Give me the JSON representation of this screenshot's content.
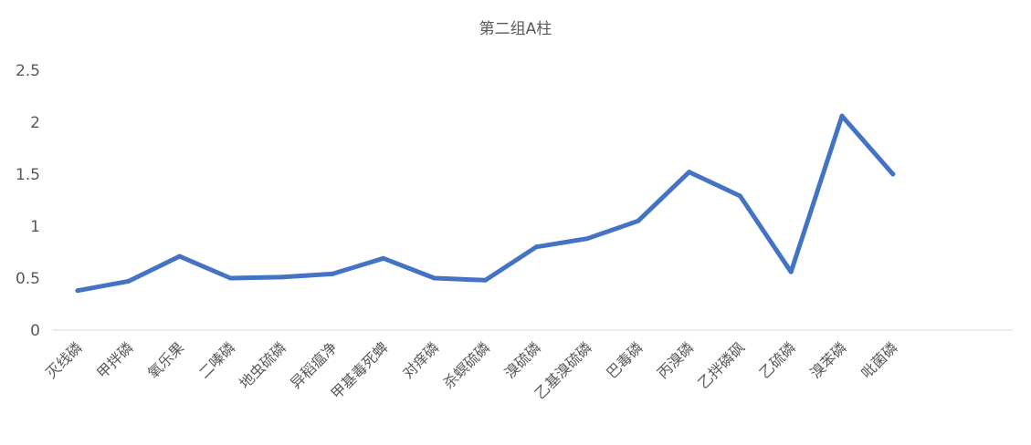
{
  "chart_data": {
    "type": "line",
    "title": "第二组A柱",
    "xlabel": "",
    "ylabel": "",
    "ylim": [
      0,
      2.5
    ],
    "yticks": [
      "0",
      "0.5",
      "1",
      "1.5",
      "2",
      "2.5"
    ],
    "grid": false,
    "legend": "none",
    "categories": [
      "灭线磷",
      "甲拌磷",
      "氧乐果",
      "二嗪磷",
      "地虫硫磷",
      "异稻瘟净",
      "甲基毒死蜱",
      "对痒磷",
      "杀螟硫磷",
      "溴硫磷",
      "乙基溴硫磷",
      "巴毒磷",
      "丙溴磷",
      "乙拌磷砜",
      "乙硫磷",
      "溴苯磷",
      "吡菌磷"
    ],
    "series": [
      {
        "color": "#4472C4",
        "values": [
          0.38,
          0.47,
          0.71,
          0.5,
          0.51,
          0.54,
          0.69,
          0.5,
          0.48,
          0.8,
          0.88,
          1.05,
          1.52,
          1.29,
          0.56,
          2.06,
          1.5
        ]
      }
    ]
  }
}
